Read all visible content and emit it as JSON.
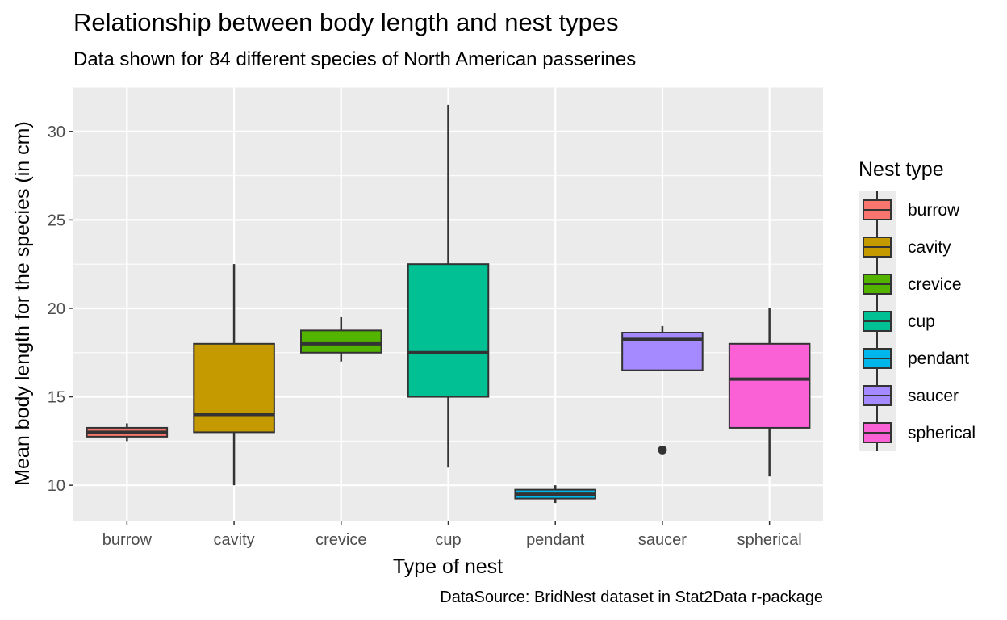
{
  "title": "Relationship between body length and nest types",
  "subtitle": "Data shown for 84 different species of North American passerines",
  "caption": "DataSource: BridNest dataset in Stat2Data r-package",
  "legend": {
    "title": "Nest type"
  },
  "chart_data": {
    "type": "boxplot",
    "xlabel": "Type of nest",
    "ylabel": "Mean body length for the species (in cm)",
    "ylim": [
      8.0,
      32.5
    ],
    "yticks": [
      10,
      15,
      20,
      25,
      30
    ],
    "grid": true,
    "legend_position": "right",
    "categories": [
      "burrow",
      "cavity",
      "crevice",
      "cup",
      "pendant",
      "saucer",
      "spherical"
    ],
    "boxes": [
      {
        "name": "burrow",
        "color": "#F8766D",
        "min": 12.5,
        "q1": 12.75,
        "median": 13.0,
        "q3": 13.25,
        "max": 13.5,
        "outliers": []
      },
      {
        "name": "cavity",
        "color": "#C49A00",
        "min": 10.0,
        "q1": 13.0,
        "median": 14.0,
        "q3": 18.0,
        "max": 22.5,
        "outliers": []
      },
      {
        "name": "crevice",
        "color": "#53B400",
        "min": 17.0,
        "q1": 17.5,
        "median": 18.0,
        "q3": 18.75,
        "max": 19.5,
        "outliers": []
      },
      {
        "name": "cup",
        "color": "#00C094",
        "min": 11.0,
        "q1": 15.0,
        "median": 17.5,
        "q3": 22.5,
        "max": 31.5,
        "outliers": []
      },
      {
        "name": "pendant",
        "color": "#00B6EB",
        "min": 9.0,
        "q1": 9.25,
        "median": 9.5,
        "q3": 9.75,
        "max": 10.0,
        "outliers": []
      },
      {
        "name": "saucer",
        "color": "#A58AFF",
        "min": 16.5,
        "q1": 16.5,
        "median": 18.25,
        "q3": 18.63,
        "max": 19.0,
        "outliers": [
          12.0
        ]
      },
      {
        "name": "spherical",
        "color": "#FB61D7",
        "min": 10.5,
        "q1": 13.25,
        "median": 16.0,
        "q3": 18.0,
        "max": 20.0,
        "outliers": []
      }
    ]
  }
}
